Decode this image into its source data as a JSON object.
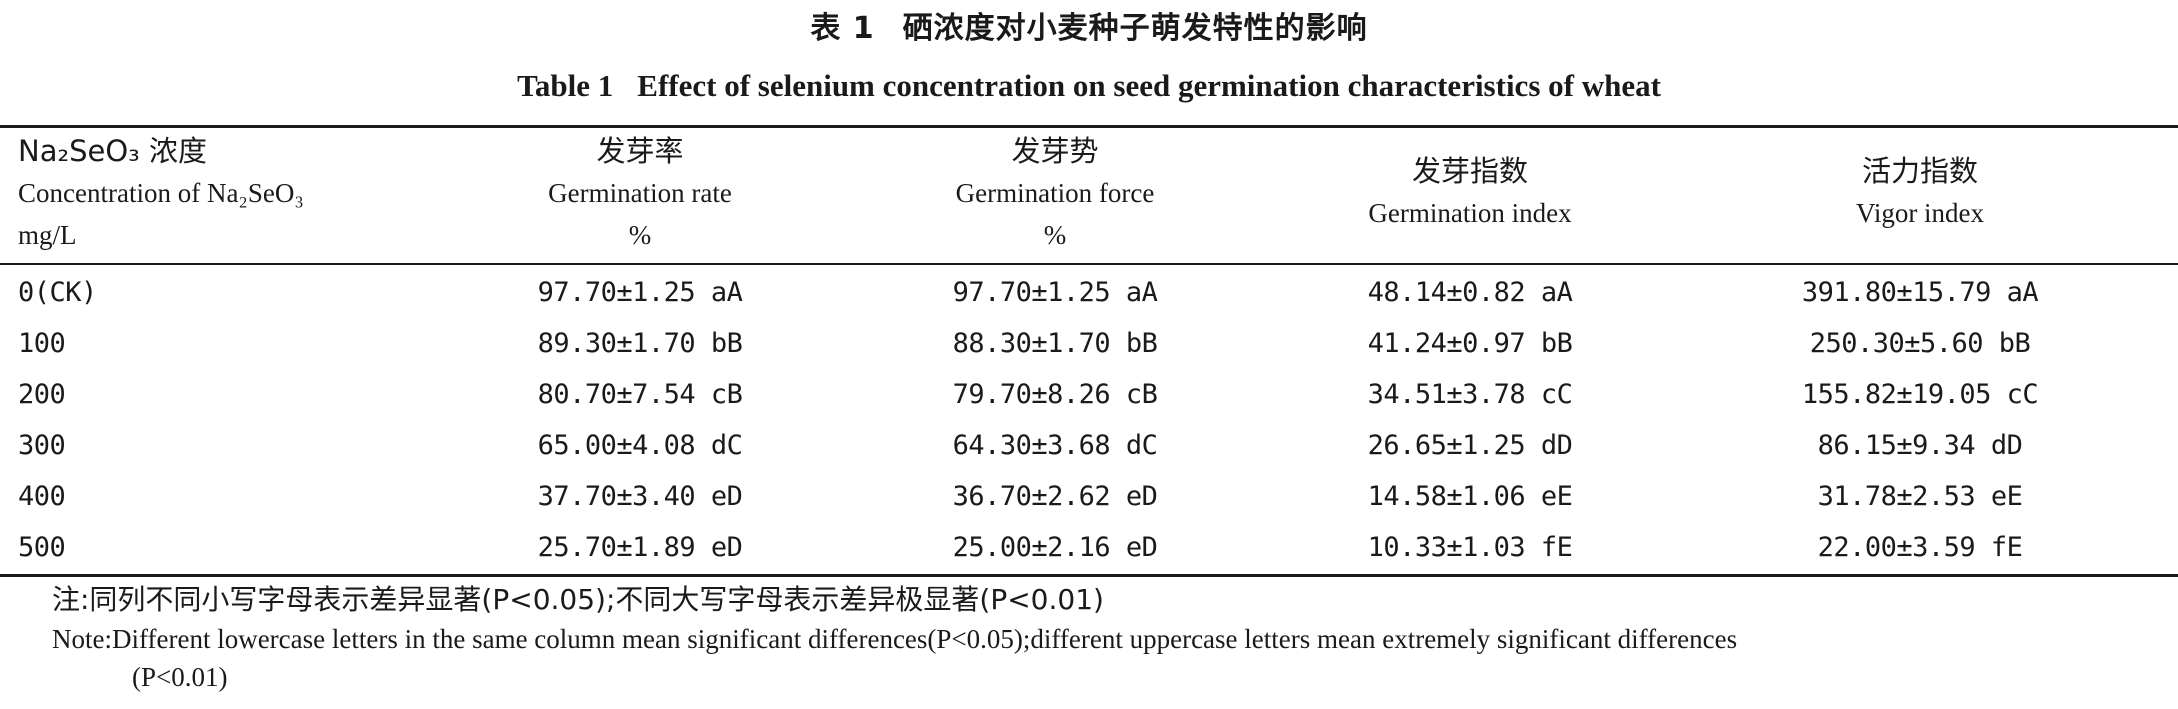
{
  "title": {
    "cn_label": "表 1",
    "cn_text": "硒浓度对小麦种子萌发特性的影响",
    "en_label": "Table 1",
    "en_text": "Effect of selenium concentration on seed germination characteristics of wheat"
  },
  "headers": [
    {
      "cn": "Na₂SeO₃ 浓度",
      "en": "Concentration of Na₂SeO₃",
      "unit": "mg/L"
    },
    {
      "cn": "发芽率",
      "en": "Germination rate",
      "unit": "%"
    },
    {
      "cn": "发芽势",
      "en": "Germination force",
      "unit": "%"
    },
    {
      "cn": "发芽指数",
      "en": "Germination index",
      "unit": ""
    },
    {
      "cn": "活力指数",
      "en": "Vigor index",
      "unit": ""
    }
  ],
  "rows": [
    [
      "0(CK)",
      "97.70±1.25 aA",
      "97.70±1.25 aA",
      "48.14±0.82 aA",
      "391.80±15.79 aA"
    ],
    [
      "100",
      "89.30±1.70 bB",
      "88.30±1.70 bB",
      "41.24±0.97 bB",
      "250.30±5.60 bB"
    ],
    [
      "200",
      "80.70±7.54 cB",
      "79.70±8.26 cB",
      "34.51±3.78 cC",
      "155.82±19.05 cC"
    ],
    [
      "300",
      "65.00±4.08 dC",
      "64.30±3.68 dC",
      "26.65±1.25 dD",
      "86.15±9.34 dD"
    ],
    [
      "400",
      "37.70±3.40 eD",
      "36.70±2.62 eD",
      "14.58±1.06 eE",
      "31.78±2.53 eE"
    ],
    [
      "500",
      "25.70±1.89 eD",
      "25.00±2.16 eD",
      "10.33±1.03 fE",
      "22.00±3.59 fE"
    ]
  ],
  "notes": {
    "cn": "注:同列不同小写字母表示差异显著(P<0.05);不同大写字母表示差异极显著(P<0.01)",
    "en_line1": "Note:Different lowercase letters in the same column mean significant differences(P<0.05);different uppercase letters mean extremely significant differences",
    "en_line2": "(P<0.01)"
  }
}
